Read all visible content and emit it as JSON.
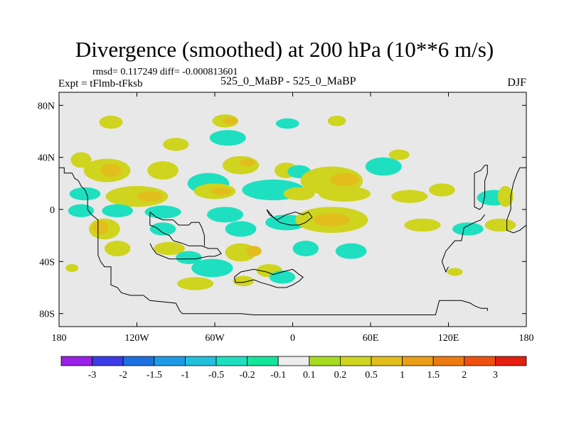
{
  "title": "Divergence (smoothed) at 200 hPa (10**6 m/s)",
  "stats": "rmsd= 0.117249 diff= -0.000813601",
  "experiment": "Expt = tFlmb-tFksb",
  "center_label": "525_0_MaBP - 525_0_MaBP",
  "season": "DJF",
  "colors": {
    "background": "#e8e8e8",
    "palette": [
      "#9a20e8",
      "#3b3be8",
      "#1c70e0",
      "#1e9be6",
      "#22c0dc",
      "#1ee0c0",
      "#12e69a",
      "#ededed",
      "#a6dc20",
      "#cfd41e",
      "#e2be1c",
      "#e89e16",
      "#ec7a10",
      "#ef5010",
      "#e41e10"
    ]
  },
  "colorbar_labels": [
    "-3",
    "-2",
    "-1.5",
    "-1",
    "-0.5",
    "-0.2",
    "-0.1",
    "0.1",
    "0.2",
    "0.5",
    "1",
    "1.5",
    "2",
    "3"
  ],
  "chart_data": {
    "type": "heatmap",
    "title": "Divergence (smoothed) at 200 hPa (10**6 m/s)",
    "x_range": [
      -180,
      180
    ],
    "y_range": [
      -90,
      90
    ],
    "x_ticks": [
      -180,
      -120,
      -60,
      0,
      60,
      120,
      180
    ],
    "x_tick_labels": [
      "180",
      "120W",
      "60W",
      "0",
      "60E",
      "120E",
      "180"
    ],
    "y_ticks": [
      80,
      40,
      0,
      -40,
      -80
    ],
    "y_tick_labels": [
      "80N",
      "40N",
      "0",
      "40S",
      "80S"
    ],
    "levels": [
      -3,
      -2,
      -1.5,
      -1,
      -0.5,
      -0.2,
      -0.1,
      0.1,
      0.2,
      0.5,
      1,
      1.5,
      2,
      3
    ],
    "blobs": [
      {
        "lon": -140,
        "lat": 67,
        "rx": 9,
        "ry": 5,
        "v": 0.3
      },
      {
        "lon": -52,
        "lat": 68,
        "rx": 10,
        "ry": 5,
        "v": 0.3
      },
      {
        "lon": -48,
        "lat": 68,
        "rx": 6,
        "ry": 3,
        "v": 0.6
      },
      {
        "lon": -4,
        "lat": 66,
        "rx": 9,
        "ry": 4,
        "v": -0.4
      },
      {
        "lon": 34,
        "lat": 68,
        "rx": 7,
        "ry": 4,
        "v": 0.3
      },
      {
        "lon": -50,
        "lat": 55,
        "rx": 14,
        "ry": 6,
        "v": -0.3
      },
      {
        "lon": -90,
        "lat": 50,
        "rx": 10,
        "ry": 5,
        "v": 0.3
      },
      {
        "lon": -163,
        "lat": 38,
        "rx": 8,
        "ry": 6,
        "v": 0.3
      },
      {
        "lon": -143,
        "lat": 30,
        "rx": 18,
        "ry": 9,
        "v": 0.3
      },
      {
        "lon": -140,
        "lat": 30,
        "rx": 8,
        "ry": 5,
        "v": 0.7
      },
      {
        "lon": -100,
        "lat": 30,
        "rx": 12,
        "ry": 7,
        "v": 0.3
      },
      {
        "lon": -65,
        "lat": 20,
        "rx": 16,
        "ry": 8,
        "v": -0.5
      },
      {
        "lon": -40,
        "lat": 34,
        "rx": 14,
        "ry": 7,
        "v": 0.3
      },
      {
        "lon": -35,
        "lat": 36,
        "rx": 6,
        "ry": 3,
        "v": 0.7
      },
      {
        "lon": -5,
        "lat": 30,
        "rx": 9,
        "ry": 6,
        "v": 0.3
      },
      {
        "lon": 5,
        "lat": 29,
        "rx": 9,
        "ry": 5,
        "v": -0.5
      },
      {
        "lon": 30,
        "lat": 22,
        "rx": 24,
        "ry": 11,
        "v": 0.3
      },
      {
        "lon": 40,
        "lat": 23,
        "rx": 11,
        "ry": 5,
        "v": 0.7
      },
      {
        "lon": -15,
        "lat": 15,
        "rx": 24,
        "ry": 8,
        "v": -0.4
      },
      {
        "lon": 70,
        "lat": 33,
        "rx": 14,
        "ry": 7,
        "v": -0.4
      },
      {
        "lon": 82,
        "lat": 42,
        "rx": 8,
        "ry": 4,
        "v": 0.3
      },
      {
        "lon": -160,
        "lat": 12,
        "rx": 12,
        "ry": 5,
        "v": -0.3
      },
      {
        "lon": -120,
        "lat": 10,
        "rx": 24,
        "ry": 8,
        "v": 0.3
      },
      {
        "lon": -110,
        "lat": 10,
        "rx": 10,
        "ry": 4,
        "v": 0.7
      },
      {
        "lon": -60,
        "lat": 14,
        "rx": 16,
        "ry": 6,
        "v": 0.3
      },
      {
        "lon": -55,
        "lat": 14,
        "rx": 8,
        "ry": 3,
        "v": 0.7
      },
      {
        "lon": 5,
        "lat": 12,
        "rx": 12,
        "ry": 5,
        "v": 0.3
      },
      {
        "lon": 40,
        "lat": 12,
        "rx": 20,
        "ry": 6,
        "v": 0.3
      },
      {
        "lon": 90,
        "lat": 10,
        "rx": 14,
        "ry": 5,
        "v": 0.3
      },
      {
        "lon": 115,
        "lat": 15,
        "rx": 10,
        "ry": 5,
        "v": 0.3
      },
      {
        "lon": 155,
        "lat": 9,
        "rx": 13,
        "ry": 6,
        "v": -0.4
      },
      {
        "lon": 164,
        "lat": 10,
        "rx": 6,
        "ry": 8,
        "v": 0.4
      },
      {
        "lon": -163,
        "lat": -1,
        "rx": 10,
        "ry": 5,
        "v": -0.4
      },
      {
        "lon": -135,
        "lat": -1,
        "rx": 12,
        "ry": 5,
        "v": -0.4
      },
      {
        "lon": -100,
        "lat": -2,
        "rx": 14,
        "ry": 5,
        "v": -0.4
      },
      {
        "lon": -52,
        "lat": -4,
        "rx": 14,
        "ry": 6,
        "v": -0.5
      },
      {
        "lon": -5,
        "lat": -10,
        "rx": 16,
        "ry": 6,
        "v": -0.4
      },
      {
        "lon": 30,
        "lat": -8,
        "rx": 28,
        "ry": 10,
        "v": 0.3
      },
      {
        "lon": 30,
        "lat": -8,
        "rx": 14,
        "ry": 5,
        "v": 0.7
      },
      {
        "lon": -145,
        "lat": -15,
        "rx": 12,
        "ry": 8,
        "v": 0.3
      },
      {
        "lon": -148,
        "lat": -14,
        "rx": 6,
        "ry": 5,
        "v": 0.7
      },
      {
        "lon": -100,
        "lat": -15,
        "rx": 10,
        "ry": 5,
        "v": -0.4
      },
      {
        "lon": -40,
        "lat": -15,
        "rx": 12,
        "ry": 6,
        "v": -0.5
      },
      {
        "lon": 100,
        "lat": -12,
        "rx": 14,
        "ry": 5,
        "v": 0.3
      },
      {
        "lon": 135,
        "lat": -15,
        "rx": 12,
        "ry": 5,
        "v": -0.4
      },
      {
        "lon": 160,
        "lat": -12,
        "rx": 12,
        "ry": 5,
        "v": 0.3
      },
      {
        "lon": -135,
        "lat": -30,
        "rx": 10,
        "ry": 6,
        "v": 0.3
      },
      {
        "lon": -95,
        "lat": -30,
        "rx": 12,
        "ry": 5,
        "v": 0.3
      },
      {
        "lon": -80,
        "lat": -37,
        "rx": 10,
        "ry": 5,
        "v": -0.5
      },
      {
        "lon": -40,
        "lat": -33,
        "rx": 12,
        "ry": 7,
        "v": 0.3
      },
      {
        "lon": -30,
        "lat": -32,
        "rx": 6,
        "ry": 4,
        "v": 0.7
      },
      {
        "lon": 10,
        "lat": -30,
        "rx": 10,
        "ry": 6,
        "v": -0.5
      },
      {
        "lon": 45,
        "lat": -32,
        "rx": 12,
        "ry": 6,
        "v": -0.5
      },
      {
        "lon": -62,
        "lat": -45,
        "rx": 16,
        "ry": 7,
        "v": -0.5
      },
      {
        "lon": -18,
        "lat": -47,
        "rx": 10,
        "ry": 5,
        "v": 0.3
      },
      {
        "lon": -8,
        "lat": -52,
        "rx": 10,
        "ry": 5,
        "v": -0.4
      },
      {
        "lon": -75,
        "lat": -57,
        "rx": 14,
        "ry": 5,
        "v": 0.3
      },
      {
        "lon": -38,
        "lat": -55,
        "rx": 8,
        "ry": 4,
        "v": 0.3
      },
      {
        "lon": -170,
        "lat": -45,
        "rx": 5,
        "ry": 3,
        "v": 0.3
      },
      {
        "lon": 125,
        "lat": -48,
        "rx": 6,
        "ry": 3,
        "v": 0.3
      }
    ],
    "coastlines": [
      [
        [
          -180,
          32
        ],
        [
          -176,
          32
        ],
        [
          -176,
          28
        ],
        [
          -170,
          28
        ],
        [
          -168,
          24
        ],
        [
          -165,
          22
        ],
        [
          -163,
          18
        ],
        [
          -160,
          15
        ],
        [
          -158,
          10
        ],
        [
          -158,
          0
        ],
        [
          -155,
          -4
        ],
        [
          -150,
          -8
        ],
        [
          -150,
          -35
        ],
        [
          -148,
          -40
        ],
        [
          -145,
          -44
        ],
        [
          -140,
          -44
        ],
        [
          -140,
          -48
        ],
        [
          -140,
          -58
        ],
        [
          -135,
          -60
        ],
        [
          -132,
          -64
        ],
        [
          -125,
          -66
        ],
        [
          -115,
          -66
        ],
        [
          -110,
          -70
        ],
        [
          -90,
          -72
        ],
        [
          -87,
          -78
        ],
        [
          -85,
          -80
        ],
        [
          -40,
          -80
        ],
        [
          -30,
          -81
        ],
        [
          0,
          -81
        ],
        [
          60,
          -81
        ],
        [
          110,
          -81
        ],
        [
          113,
          -70
        ],
        [
          130,
          -70
        ],
        [
          137,
          -72
        ],
        [
          140,
          -74
        ],
        [
          145,
          -76
        ],
        [
          150,
          -76
        ],
        [
          150,
          -78
        ]
      ],
      [
        [
          -110,
          -2
        ],
        [
          -110,
          -12
        ],
        [
          -105,
          -14
        ],
        [
          -100,
          -18
        ],
        [
          -95,
          -20
        ],
        [
          -92,
          -24
        ],
        [
          -85,
          -26
        ],
        [
          -80,
          -28
        ],
        [
          -70,
          -28
        ],
        [
          -65,
          -30
        ],
        [
          -58,
          -30
        ],
        [
          -55,
          -34
        ],
        [
          -60,
          -36
        ],
        [
          -65,
          -36
        ],
        [
          -75,
          -38
        ],
        [
          -85,
          -38
        ],
        [
          -95,
          -38
        ],
        [
          -100,
          -36
        ],
        [
          -105,
          -34
        ],
        [
          -108,
          -30
        ],
        [
          -110,
          -26
        ]
      ],
      [
        [
          -110,
          -2
        ],
        [
          -105,
          -6
        ],
        [
          -100,
          -8
        ],
        [
          -92,
          -8
        ],
        [
          -88,
          -12
        ],
        [
          -80,
          -12
        ],
        [
          -78,
          -10
        ],
        [
          -72,
          -10
        ],
        [
          -70,
          -14
        ],
        [
          -68,
          -20
        ],
        [
          -68,
          -28
        ]
      ],
      [
        [
          -20,
          0
        ],
        [
          -18,
          -4
        ],
        [
          -12,
          -8
        ],
        [
          -5,
          -4
        ],
        [
          2,
          -2
        ],
        [
          8,
          -4
        ],
        [
          12,
          -2
        ],
        [
          15,
          -6
        ],
        [
          10,
          -10
        ],
        [
          5,
          -12
        ],
        [
          -2,
          -12
        ],
        [
          -10,
          -10
        ],
        [
          -15,
          -6
        ],
        [
          -20,
          0
        ]
      ],
      [
        [
          -45,
          -52
        ],
        [
          -40,
          -48
        ],
        [
          -30,
          -46
        ],
        [
          -20,
          -48
        ],
        [
          -15,
          -50
        ],
        [
          -8,
          -48
        ],
        [
          0,
          -46
        ],
        [
          5,
          -50
        ],
        [
          8,
          -52
        ],
        [
          5,
          -55
        ],
        [
          0,
          -58
        ],
        [
          -5,
          -60
        ],
        [
          -12,
          -60
        ],
        [
          -18,
          -58
        ],
        [
          -25,
          -56
        ],
        [
          -30,
          -54
        ],
        [
          -38,
          -56
        ],
        [
          -44,
          -56
        ],
        [
          -45,
          -52
        ]
      ],
      [
        [
          140,
          28
        ],
        [
          145,
          30
        ],
        [
          148,
          34
        ],
        [
          150,
          34
        ],
        [
          150,
          28
        ],
        [
          148,
          22
        ],
        [
          148,
          10
        ],
        [
          146,
          2
        ],
        [
          144,
          0
        ],
        [
          140,
          2
        ],
        [
          140,
          28
        ]
      ],
      [
        [
          180,
          32
        ],
        [
          175,
          32
        ],
        [
          173,
          28
        ],
        [
          170,
          20
        ],
        [
          168,
          10
        ],
        [
          168,
          0
        ],
        [
          165,
          -8
        ],
        [
          165,
          -16
        ],
        [
          170,
          -18
        ],
        [
          175,
          -16
        ],
        [
          180,
          -12
        ]
      ],
      [
        [
          120,
          -44
        ],
        [
          118,
          -48
        ],
        [
          115,
          -40
        ],
        [
          118,
          -32
        ],
        [
          125,
          -24
        ],
        [
          130,
          -24
        ],
        [
          132,
          -14
        ],
        [
          140,
          -10
        ],
        [
          145,
          -8
        ],
        [
          148,
          -4
        ]
      ]
    ]
  }
}
